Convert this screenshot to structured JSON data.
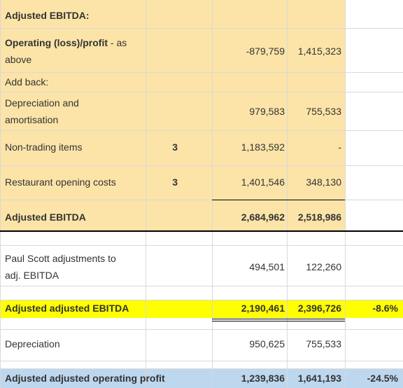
{
  "colors": {
    "peach": "#fce4a8",
    "yellow": "#ffff00",
    "blue": "#bdd7ee",
    "text": "#333333"
  },
  "rows": {
    "adjusted_ebitda_header": {
      "label": "Adjusted EBITDA:"
    },
    "operating": {
      "label_bold": "Operating (loss)/profit",
      "label_rest": " - as",
      "label_line2": "above",
      "col_a": "-879,759",
      "col_b": "1,415,323"
    },
    "add_back": {
      "label": "Add back:"
    },
    "depreciation_amort": {
      "label_line1": "Depreciation and",
      "label_line2": "amortisation",
      "col_a": "979,583",
      "col_b": "755,533"
    },
    "non_trading": {
      "label": "Non-trading items",
      "note": "3",
      "col_a": "1,183,592",
      "col_b": "-"
    },
    "restaurant": {
      "label": "Restaurant opening costs",
      "note": "3",
      "col_a": "1,401,546",
      "col_b": "348,130"
    },
    "adjusted_ebitda": {
      "label": "Adjusted EBITDA",
      "col_a": "2,684,962",
      "col_b": "2,518,986"
    },
    "paul_scott": {
      "label_line1": "Paul Scott adjustments to",
      "label_line2": "adj. EBITDA",
      "col_a": "494,501",
      "col_b": "122,260"
    },
    "adj_adj_ebitda": {
      "label": "Adjusted adjusted EBITDA",
      "col_a": "2,190,461",
      "col_b": "2,396,726",
      "pct": "-8.6%"
    },
    "depreciation": {
      "label": "Depreciation",
      "col_a": "950,625",
      "col_b": "755,533"
    },
    "adj_adj_op_profit": {
      "label": "Adjusted adjusted operating profit",
      "col_a": "1,239,836",
      "col_b": "1,641,193",
      "pct": "-24.5%"
    }
  }
}
